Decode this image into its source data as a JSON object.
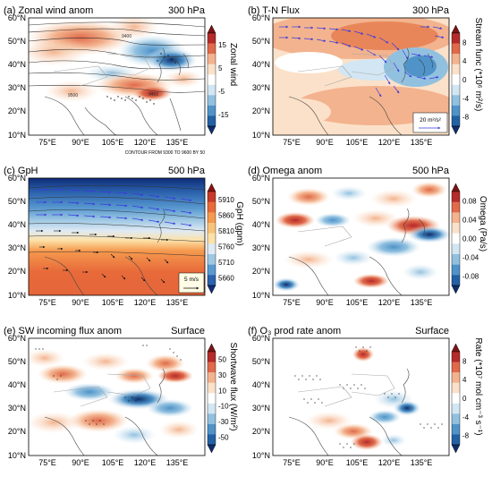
{
  "panels": [
    {
      "id": "a",
      "title": "(a) Zonal wind anom",
      "level": "300 hPa",
      "colorbar": {
        "label": "Zonal wind",
        "ticks": [
          "15",
          "5",
          "-5",
          "-15"
        ],
        "colors": [
          "#7a1414",
          "#b52a2a",
          "#e06a4a",
          "#f3b38e",
          "#fbe1c9",
          "#ffffff",
          "#d2e6f3",
          "#92c1e0",
          "#4f93c9",
          "#2361a5",
          "#0d2f6b"
        ]
      },
      "lat_labels": [
        "60°N",
        "50°N",
        "40°N",
        "30°N",
        "20°N",
        "10°N"
      ],
      "lon_labels": [
        "75°E",
        "90°E",
        "105°E",
        "120°E",
        "135°E"
      ],
      "annotations": [
        "9400",
        "9500",
        "9400"
      ],
      "footnote": "CONTOUR FROM 9300 TO 9600 BY 50"
    },
    {
      "id": "b",
      "title": "(b) T-N Flux",
      "level": "300 hPa",
      "colorbar": {
        "label": "Stream func (*10⁶ m²/s)",
        "ticks": [
          "8",
          "4",
          "0",
          "-4",
          "-8"
        ],
        "colors": [
          "#7a1414",
          "#b52a2a",
          "#e06a4a",
          "#f3b38e",
          "#fbe1c9",
          "#ffffff",
          "#d2e6f3",
          "#92c1e0",
          "#4f93c9",
          "#2361a5",
          "#0d2f6b"
        ]
      },
      "lat_labels": [
        "60°N",
        "50°N",
        "40°N",
        "30°N",
        "20°N",
        "10°N"
      ],
      "lon_labels": [
        "75°E",
        "90°E",
        "105°E",
        "120°E",
        "135°E"
      ],
      "legend_vector": "20 m²/s²"
    },
    {
      "id": "c",
      "title": "(c) GpH",
      "level": "500 hPa",
      "colorbar": {
        "label": "GpH (gpm)",
        "ticks": [
          "5910",
          "5860",
          "5810",
          "5760",
          "5710",
          "5660"
        ],
        "colors": [
          "#8a1212",
          "#c53a2a",
          "#e86a3a",
          "#f59a4e",
          "#fac37a",
          "#fde2a8",
          "#dfeaf4",
          "#9ec8e4",
          "#5a9ad0",
          "#2b62ad",
          "#102e78"
        ]
      },
      "lat_labels": [
        "60°N",
        "50°N",
        "40°N",
        "30°N",
        "20°N",
        "10°N"
      ],
      "lon_labels": [
        "75°E",
        "90°E",
        "105°E",
        "120°E",
        "135°E"
      ],
      "legend_vector": "5 m/s"
    },
    {
      "id": "d",
      "title": "(d) Omega anom",
      "level": "500 hPa",
      "colorbar": {
        "label": "Omega (Pa/s)",
        "ticks": [
          "0.08",
          "0.04",
          "0.00",
          "-0.04",
          "-0.08"
        ],
        "colors": [
          "#7a1414",
          "#b52a2a",
          "#e06a4a",
          "#f3b38e",
          "#fbe1c9",
          "#ffffff",
          "#d2e6f3",
          "#92c1e0",
          "#4f93c9",
          "#2361a5",
          "#0d2f6b"
        ]
      },
      "lat_labels": [
        "60°N",
        "50°N",
        "40°N",
        "30°N",
        "20°N",
        "10°N"
      ],
      "lon_labels": [
        "75°E",
        "90°E",
        "105°E",
        "120°E",
        "135°E"
      ]
    },
    {
      "id": "e",
      "title": "(e) SW incoming flux anom",
      "level": "Surface",
      "colorbar": {
        "label": "Shortwave flux (W/m²)",
        "ticks": [
          "50",
          "30",
          "10",
          "-10",
          "-30",
          "-50"
        ],
        "colors": [
          "#7a1414",
          "#b52a2a",
          "#e06a4a",
          "#f3b38e",
          "#fbe1c9",
          "#ffffff",
          "#d2e6f3",
          "#92c1e0",
          "#4f93c9",
          "#2361a5",
          "#0d2f6b"
        ]
      },
      "lat_labels": [
        "60°N",
        "50°N",
        "40°N",
        "30°N",
        "20°N",
        "10°N"
      ],
      "lon_labels": [
        "75°E",
        "90°E",
        "105°E",
        "120°E",
        "135°E"
      ]
    },
    {
      "id": "f",
      "title": "(f) O₃ prod rate anom",
      "level": "Surface",
      "colorbar": {
        "label": "Rate (*10⁷ mol cm⁻³ s⁻¹)",
        "ticks": [
          "8",
          "4",
          "0",
          "-4",
          "-8"
        ],
        "colors": [
          "#7a1414",
          "#b52a2a",
          "#e06a4a",
          "#f3b38e",
          "#fbe1c9",
          "#ffffff",
          "#d2e6f3",
          "#92c1e0",
          "#4f93c9",
          "#2361a5",
          "#0d2f6b"
        ]
      },
      "lat_labels": [
        "60°N",
        "50°N",
        "40°N",
        "30°N",
        "20°N",
        "10°N"
      ],
      "lon_labels": [
        "75°E",
        "90°E",
        "105°E",
        "120°E",
        "135°E"
      ]
    }
  ]
}
